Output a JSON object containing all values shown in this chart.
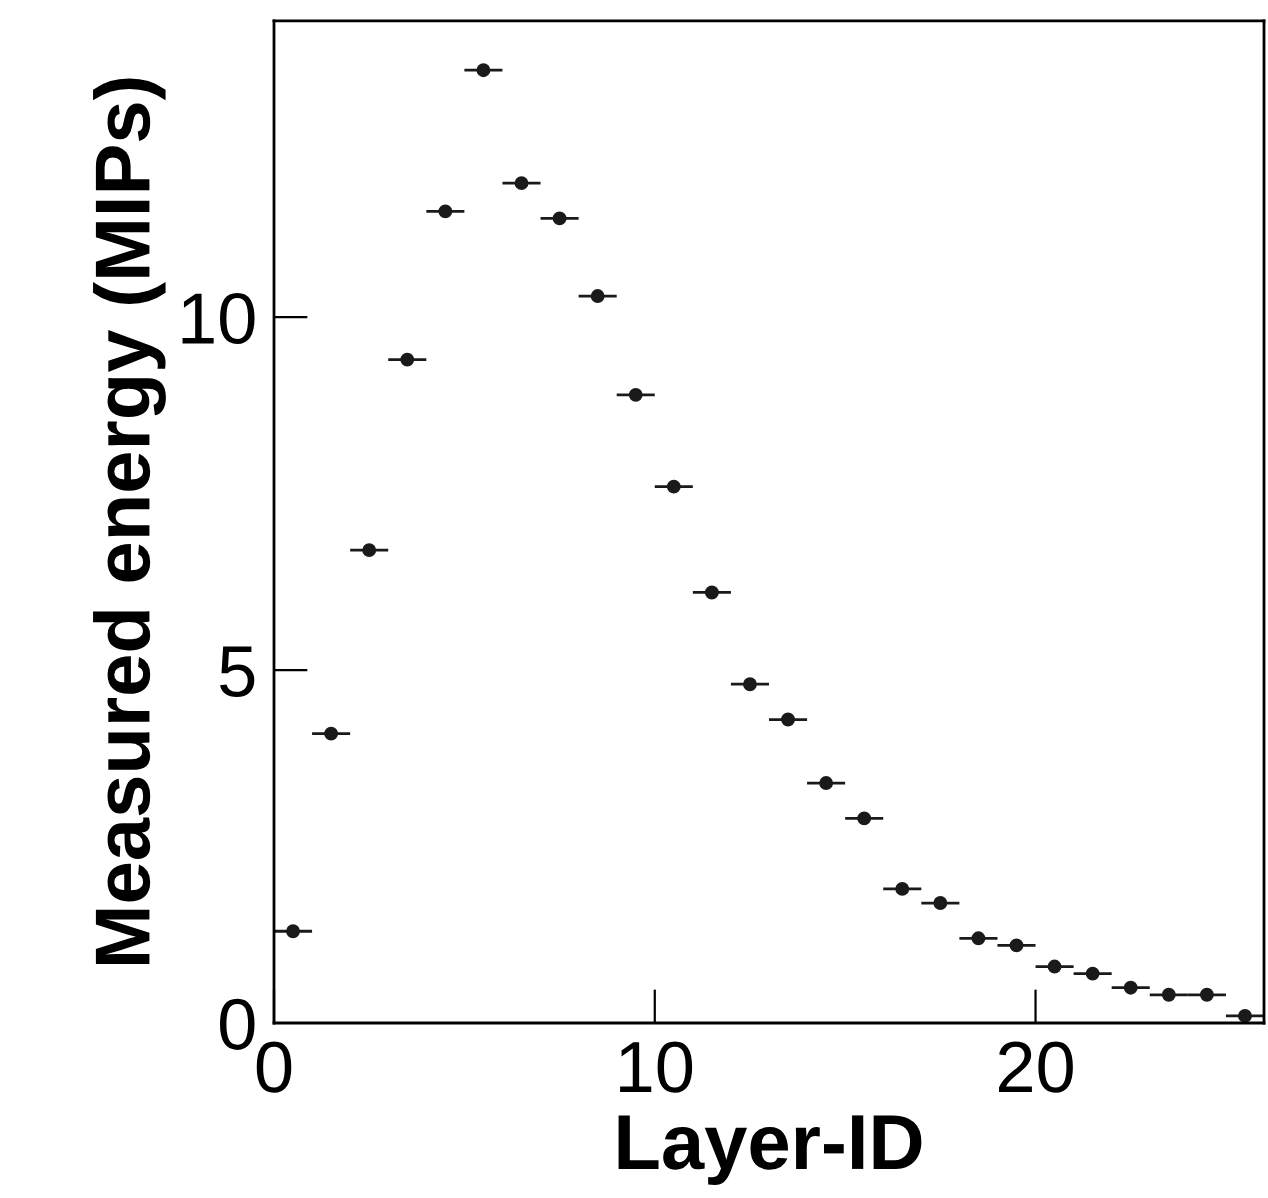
{
  "chart_data": {
    "type": "scatter",
    "xlabel": "Layer-ID",
    "ylabel": "Measured energy (MIPs)",
    "x": [
      0.5,
      1.5,
      2.5,
      3.5,
      4.5,
      5.5,
      6.5,
      7.5,
      8.5,
      9.5,
      10.5,
      11.5,
      12.5,
      13.5,
      14.5,
      15.5,
      16.5,
      17.5,
      18.5,
      19.5,
      20.5,
      21.5,
      22.5,
      23.5,
      24.5,
      25.5
    ],
    "values": [
      1.3,
      4.1,
      6.7,
      9.4,
      11.5,
      13.5,
      11.9,
      11.4,
      10.3,
      8.9,
      7.6,
      6.1,
      4.8,
      4.3,
      3.4,
      2.9,
      1.9,
      1.7,
      1.2,
      1.1,
      0.8,
      0.7,
      0.5,
      0.4,
      0.4,
      0.1
    ],
    "xerrors": [
      0.5,
      0.5,
      0.5,
      0.5,
      0.5,
      0.5,
      0.5,
      0.5,
      0.5,
      0.5,
      0.5,
      0.5,
      0.5,
      0.5,
      0.5,
      0.5,
      0.5,
      0.5,
      0.5,
      0.5,
      0.5,
      0.5,
      0.5,
      0.5,
      0.5,
      0.5
    ],
    "color": "#1a1a1a",
    "marker": "circle",
    "grid": false,
    "xlim": [
      0,
      26
    ],
    "ylim": [
      0,
      14.2
    ],
    "xticks": [
      0,
      10,
      20
    ],
    "yticks": [
      0,
      5,
      10
    ]
  }
}
